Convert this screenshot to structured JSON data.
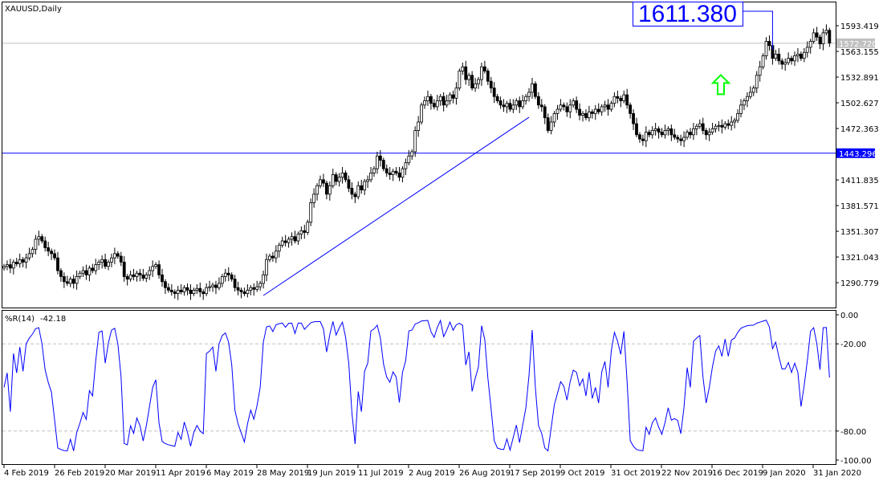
{
  "chart_data": {
    "type": "candlestick",
    "title": "XAUUSD,Daily",
    "symbol": "XAUUSD",
    "timeframe": "Daily",
    "closes": [
      1310,
      1312,
      1308,
      1315,
      1313,
      1318,
      1315,
      1320,
      1325,
      1330,
      1342,
      1345,
      1340,
      1332,
      1328,
      1325,
      1320,
      1305,
      1298,
      1292,
      1290,
      1295,
      1290,
      1298,
      1302,
      1305,
      1300,
      1308,
      1305,
      1312,
      1315,
      1318,
      1310,
      1315,
      1320,
      1325,
      1322,
      1315,
      1298,
      1295,
      1300,
      1298,
      1302,
      1300,
      1296,
      1300,
      1305,
      1310,
      1312,
      1300,
      1292,
      1285,
      1282,
      1280,
      1278,
      1282,
      1280,
      1285,
      1282,
      1278,
      1282,
      1284,
      1280,
      1278,
      1285,
      1286,
      1288,
      1285,
      1290,
      1298,
      1302,
      1300,
      1295,
      1285,
      1282,
      1280,
      1278,
      1282,
      1285,
      1283,
      1286,
      1290,
      1300,
      1318,
      1322,
      1320,
      1328,
      1335,
      1340,
      1338,
      1342,
      1345,
      1340,
      1348,
      1352,
      1350,
      1362,
      1385,
      1395,
      1405,
      1412,
      1408,
      1395,
      1405,
      1418,
      1410,
      1415,
      1420,
      1412,
      1402,
      1395,
      1392,
      1405,
      1400,
      1410,
      1412,
      1420,
      1425,
      1440,
      1435,
      1425,
      1420,
      1418,
      1422,
      1420,
      1415,
      1425,
      1432,
      1440,
      1445,
      1470,
      1480,
      1500,
      1505,
      1510,
      1502,
      1498,
      1505,
      1510,
      1500,
      1505,
      1512,
      1508,
      1520,
      1540,
      1545,
      1530,
      1535,
      1520,
      1525,
      1530,
      1545,
      1540,
      1528,
      1520,
      1510,
      1505,
      1500,
      1498,
      1502,
      1495,
      1500,
      1505,
      1498,
      1505,
      1510,
      1515,
      1525,
      1510,
      1500,
      1498,
      1485,
      1470,
      1480,
      1490,
      1495,
      1500,
      1498,
      1492,
      1500,
      1505,
      1495,
      1488,
      1490,
      1485,
      1492,
      1490,
      1495,
      1492,
      1498,
      1500,
      1495,
      1502,
      1510,
      1508,
      1505,
      1512,
      1500,
      1490,
      1478,
      1465,
      1460,
      1458,
      1468,
      1465,
      1470,
      1472,
      1468,
      1465,
      1470,
      1472,
      1465,
      1462,
      1460,
      1458,
      1462,
      1468,
      1465,
      1472,
      1475,
      1478,
      1470,
      1465,
      1468,
      1472,
      1475,
      1476,
      1474,
      1478,
      1476,
      1480,
      1482,
      1490,
      1500,
      1505,
      1510,
      1515,
      1520,
      1535,
      1545,
      1558,
      1575,
      1570,
      1555,
      1560,
      1552,
      1548,
      1550,
      1555,
      1552,
      1558,
      1560,
      1555,
      1562,
      1568,
      1575,
      1585,
      1580,
      1572,
      1585,
      1588,
      1573
    ],
    "price_ticks": [
      "1593.419",
      "1563.155",
      "1532.891",
      "1502.627",
      "1472.363",
      "1411.835",
      "1381.571",
      "1351.307",
      "1321.043",
      "1290.779"
    ],
    "price_range": [
      1270.2,
      1621.5
    ],
    "current_price": "1572.720",
    "horizontal_level": "1443.296",
    "trendline": {
      "from": {
        "date": "28 May 2019",
        "price": 1275.7
      },
      "to": {
        "date": "17 Sep 2019",
        "price": 1485.6
      }
    },
    "annotation_price": "1611.380",
    "arrow": {
      "type": "up-arrow",
      "color": "#00ff00",
      "price": 1524
    },
    "date_ticks": [
      "4 Feb 2019",
      "26 Feb 2019",
      "20 Mar 2019",
      "11 Apr 2019",
      "6 May 2019",
      "28 May 2019",
      "19 Jun 2019",
      "11 Jul 2019",
      "2 Aug 2019",
      "26 Aug 2019",
      "17 Sep 2019",
      "9 Oct 2019",
      "31 Oct 2019",
      "22 Nov 2019",
      "16 Dec 2019",
      "9 Jan 2020",
      "31 Jan 2020"
    ],
    "indicator": {
      "name": "%R(14)",
      "value": "-42.18",
      "ticks": [
        "0.00",
        "-20.00",
        "-80.00",
        "-100.00"
      ],
      "levels": [
        -20,
        -80
      ],
      "range": [
        -100,
        0
      ],
      "color": "#0000ff"
    },
    "colors": {
      "line": "#0000ff",
      "current_price_line": "#c0c0c0",
      "level_dash": "#c0c0c0"
    }
  }
}
